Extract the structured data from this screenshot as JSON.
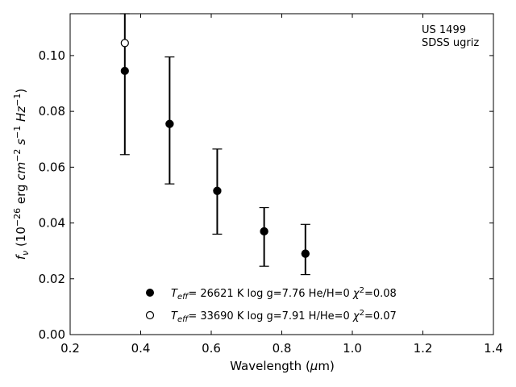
{
  "chart_data": {
    "type": "scatter",
    "xlabel": "Wavelength (µm)",
    "ylabel": "f_ν (10^-26 erg cm^-2 s^-1 Hz^-1)",
    "xlim": [
      0.2,
      1.4
    ],
    "ylim": [
      0.0,
      0.115
    ],
    "x_ticks": [
      "0.2",
      "0.4",
      "0.6",
      "0.8",
      "1.0",
      "1.2",
      "1.4"
    ],
    "y_ticks": [
      "0.00",
      "0.02",
      "0.04",
      "0.06",
      "0.08",
      "0.10"
    ],
    "grid": false,
    "annotations": [
      "US 1499",
      "SDSS ugriz"
    ],
    "legend_position": "lower-center",
    "series": [
      {
        "name": "T_eff= 26621 K  log g=7.76  He/H=0  χ²=0.08",
        "marker": "filled-circle",
        "color": "#000000",
        "points": [
          {
            "x": 0.355,
            "y": 0.0945
          },
          {
            "x": 0.482,
            "y": 0.0755
          },
          {
            "x": 0.617,
            "y": 0.0515
          },
          {
            "x": 0.75,
            "y": 0.037
          },
          {
            "x": 0.867,
            "y": 0.029
          }
        ]
      },
      {
        "name": "T_eff= 33690 K  log g=7.91  H/He=0  χ²=0.07",
        "marker": "open-circle",
        "color": "#000000",
        "points": [
          {
            "x": 0.355,
            "y": 0.1045
          },
          {
            "x": 0.482,
            "y": 0.0755
          },
          {
            "x": 0.617,
            "y": 0.0515
          },
          {
            "x": 0.75,
            "y": 0.037
          },
          {
            "x": 0.867,
            "y": 0.029
          }
        ]
      }
    ],
    "observed": {
      "name": "SDSS ugriz",
      "points": [
        {
          "x": 0.355,
          "y_low": 0.0645,
          "y_high": 0.115
        },
        {
          "x": 0.482,
          "y_low": 0.054,
          "y_high": 0.0995
        },
        {
          "x": 0.617,
          "y_low": 0.036,
          "y_high": 0.0665
        },
        {
          "x": 0.75,
          "y_low": 0.0245,
          "y_high": 0.0455
        },
        {
          "x": 0.867,
          "y_low": 0.0215,
          "y_high": 0.0395
        }
      ]
    }
  }
}
